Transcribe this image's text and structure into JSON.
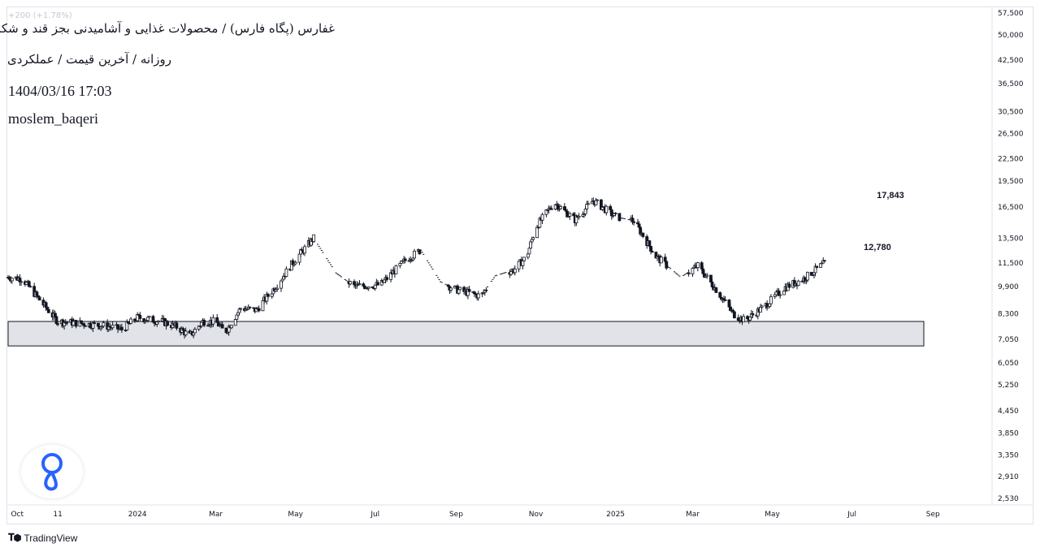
{
  "header": {
    "title": "غفارس (پگاه فارس) / محصولات غذایی و آشامیدنی بجز قند و شکر",
    "subtitle": "روزانه / آخرین قیمت / عملکردی",
    "datetime": "1404/03/16 17:03",
    "author": "moslem_baqeri",
    "faded_quote": "+200 (+1.78%)"
  },
  "branding": {
    "tradingview_label": "TradingView",
    "badge_icon": "location-pin-loop-icon"
  },
  "colors": {
    "candle": "#131722",
    "zone_fill": "#e1e3e8",
    "zone_border": "#131722",
    "axis_text": "#131722",
    "grid_border": "#e0e3eb",
    "badge_blue": "#2962ff"
  },
  "chart_data": {
    "type": "candlestick",
    "title": "غفارس (پگاه فارس) / محصولات غذایی و آشامیدنی بجز قند و شکر",
    "scale": "log",
    "ylim": [
      2530,
      57500
    ],
    "y_ticks": [
      2530,
      2910,
      3350,
      3850,
      4450,
      5250,
      6050,
      7050,
      8300,
      9900,
      11500,
      13500,
      16500,
      19500,
      22500,
      26500,
      30500,
      36500,
      42500,
      50000,
      57500
    ],
    "y_tick_labels": [
      "2,530",
      "2,910",
      "3,350",
      "3,850",
      "4,450",
      "5,250",
      "6,050",
      "7,050",
      "8,300",
      "9,900",
      "11,500",
      "13,500",
      "16,500",
      "19,500",
      "22,500",
      "26,500",
      "30,500",
      "36,500",
      "42,500",
      "50,000",
      "57,500"
    ],
    "x_ticks": [
      {
        "label": "Oct",
        "date": "2023-10-01"
      },
      {
        "label": "11",
        "date": "2023-11-01"
      },
      {
        "label": "2024",
        "date": "2024-01-01"
      },
      {
        "label": "Mar",
        "date": "2024-03-01"
      },
      {
        "label": "May",
        "date": "2024-05-01"
      },
      {
        "label": "Jul",
        "date": "2024-07-01"
      },
      {
        "label": "Sep",
        "date": "2024-09-01"
      },
      {
        "label": "Nov",
        "date": "2024-11-01"
      },
      {
        "label": "2025",
        "date": "2025-01-01"
      },
      {
        "label": "Mar",
        "date": "2025-03-01"
      },
      {
        "label": "May",
        "date": "2025-05-01"
      },
      {
        "label": "Jul",
        "date": "2025-07-01"
      },
      {
        "label": "Sep",
        "date": "2025-09-01"
      }
    ],
    "x_range": [
      "2023-09-24",
      "2025-10-15"
    ],
    "price_path": [
      {
        "date": "2023-09-24",
        "price": 10500
      },
      {
        "date": "2023-10-05",
        "price": 10400
      },
      {
        "date": "2023-10-20",
        "price": 8900
      },
      {
        "date": "2023-11-01",
        "price": 7900
      },
      {
        "date": "2023-11-20",
        "price": 7800
      },
      {
        "date": "2023-12-10",
        "price": 7650
      },
      {
        "date": "2023-12-20",
        "price": 7500
      },
      {
        "date": "2024-01-01",
        "price": 8100
      },
      {
        "date": "2024-01-20",
        "price": 7900
      },
      {
        "date": "2024-02-01",
        "price": 7600
      },
      {
        "date": "2024-02-10",
        "price": 7200
      },
      {
        "date": "2024-02-20",
        "price": 7900
      },
      {
        "date": "2024-03-01",
        "price": 7900
      },
      {
        "date": "2024-03-08",
        "price": 7350
      },
      {
        "date": "2024-03-20",
        "price": 8600
      },
      {
        "date": "2024-04-01",
        "price": 8500
      },
      {
        "date": "2024-04-15",
        "price": 9800
      },
      {
        "date": "2024-05-01",
        "price": 11800
      },
      {
        "date": "2024-05-15",
        "price": 13500
      },
      {
        "date": "2024-06-01",
        "price": 10800
      },
      {
        "date": "2024-06-15",
        "price": 9900
      },
      {
        "date": "2024-07-05",
        "price": 10000
      },
      {
        "date": "2024-07-25",
        "price": 11800
      },
      {
        "date": "2024-08-05",
        "price": 12500
      },
      {
        "date": "2024-08-20",
        "price": 10200
      },
      {
        "date": "2024-09-01",
        "price": 9700
      },
      {
        "date": "2024-09-20",
        "price": 9300
      },
      {
        "date": "2024-10-01",
        "price": 10600
      },
      {
        "date": "2024-10-15",
        "price": 11000
      },
      {
        "date": "2024-10-25",
        "price": 12000
      },
      {
        "date": "2024-11-01",
        "price": 14500
      },
      {
        "date": "2024-11-15",
        "price": 17000
      },
      {
        "date": "2024-12-01",
        "price": 15200
      },
      {
        "date": "2024-12-15",
        "price": 17200
      },
      {
        "date": "2025-01-01",
        "price": 15500
      },
      {
        "date": "2025-01-15",
        "price": 15100
      },
      {
        "date": "2025-02-01",
        "price": 12000
      },
      {
        "date": "2025-02-20",
        "price": 10500
      },
      {
        "date": "2025-03-05",
        "price": 11300
      },
      {
        "date": "2025-03-20",
        "price": 9600
      },
      {
        "date": "2025-04-01",
        "price": 8300
      },
      {
        "date": "2025-04-10",
        "price": 7950
      },
      {
        "date": "2025-04-25",
        "price": 8700
      },
      {
        "date": "2025-05-10",
        "price": 9800
      },
      {
        "date": "2025-05-25",
        "price": 10400
      },
      {
        "date": "2025-06-10",
        "price": 11500
      }
    ],
    "zone": {
      "from_date": "2023-09-24",
      "to_date": "2025-08-25",
      "low": 6750,
      "high": 7900
    },
    "annotations": [
      {
        "text": "17,843",
        "value": 17843,
        "date": "2025-07-20"
      },
      {
        "text": "12,780",
        "value": 12780,
        "date": "2025-07-10"
      }
    ]
  }
}
